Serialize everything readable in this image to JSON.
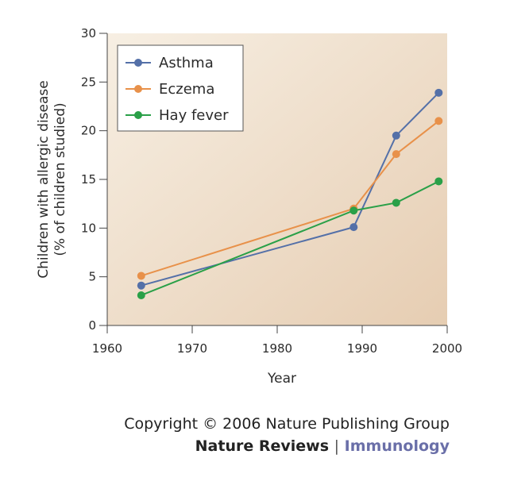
{
  "chart_data": {
    "type": "line",
    "xlabel": "Year",
    "ylabel_lines": [
      "Children with allergic disease",
      "(% of children studied)"
    ],
    "xlim": [
      1960,
      2000
    ],
    "ylim": [
      0,
      30
    ],
    "x_ticks": [
      1960,
      1970,
      1980,
      1990,
      2000
    ],
    "y_ticks": [
      0,
      5,
      10,
      15,
      20,
      25,
      30
    ],
    "legend_position": "top-left",
    "grid": false,
    "background_gradient": [
      "#f7efe3",
      "#e6cdb2"
    ],
    "series": [
      {
        "name": "Asthma",
        "color": "#5470a8",
        "x": [
          1964,
          1989,
          1994,
          1999
        ],
        "y": [
          4.1,
          10.1,
          19.5,
          23.9
        ]
      },
      {
        "name": "Eczema",
        "color": "#e8914a",
        "x": [
          1964,
          1989,
          1994,
          1999
        ],
        "y": [
          5.1,
          12.0,
          17.6,
          21.0
        ]
      },
      {
        "name": "Hay fever",
        "color": "#2aa048",
        "x": [
          1964,
          1989,
          1994,
          1999
        ],
        "y": [
          3.1,
          11.8,
          12.6,
          14.8
        ]
      }
    ]
  },
  "credits": {
    "copyright": "Copyright © 2006 Nature Publishing Group",
    "publication": "Nature Reviews",
    "separator": "|",
    "journal": "Immunology"
  }
}
